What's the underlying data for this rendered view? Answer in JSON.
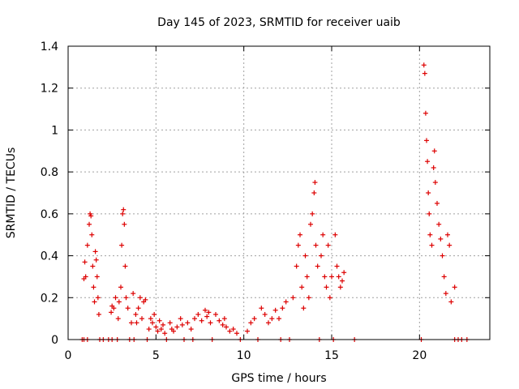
{
  "chart_data": {
    "type": "scatter",
    "title": "Day 145 of 2023, SRMTID for receiver uaib",
    "xlabel": "GPS time / hours",
    "ylabel": "SRMTID / TECUs",
    "xlim": [
      0,
      24
    ],
    "ylim": [
      0,
      1.4
    ],
    "xticks": [
      0,
      5,
      10,
      15,
      20
    ],
    "yticks": [
      0,
      0.2,
      0.4,
      0.6,
      0.8,
      1,
      1.2,
      1.4
    ],
    "xtick_labels": [
      "0",
      "5",
      "10",
      "15",
      "20"
    ],
    "ytick_labels": [
      "0",
      "0.2",
      "0.4",
      "0.6",
      "0.8",
      "1",
      "1.2",
      "1.4"
    ],
    "grid": true,
    "marker": "+",
    "series": [
      {
        "name": "SRMTID",
        "color": "#dd0000",
        "points": [
          [
            0.8,
            0.0
          ],
          [
            0.9,
            0.0
          ],
          [
            1.1,
            0.0
          ],
          [
            0.9,
            0.29
          ],
          [
            0.95,
            0.37
          ],
          [
            1.0,
            0.3
          ],
          [
            1.1,
            0.45
          ],
          [
            1.2,
            0.55
          ],
          [
            1.25,
            0.6
          ],
          [
            1.3,
            0.59
          ],
          [
            1.35,
            0.5
          ],
          [
            1.4,
            0.35
          ],
          [
            1.45,
            0.25
          ],
          [
            1.5,
            0.18
          ],
          [
            1.55,
            0.42
          ],
          [
            1.6,
            0.38
          ],
          [
            1.65,
            0.3
          ],
          [
            1.7,
            0.2
          ],
          [
            1.75,
            0.12
          ],
          [
            1.8,
            0.0
          ],
          [
            2.0,
            0.0
          ],
          [
            2.3,
            0.0
          ],
          [
            2.5,
            0.0
          ],
          [
            2.45,
            0.13
          ],
          [
            2.5,
            0.16
          ],
          [
            2.6,
            0.15
          ],
          [
            2.7,
            0.2
          ],
          [
            2.8,
            0.0
          ],
          [
            2.85,
            0.1
          ],
          [
            2.9,
            0.18
          ],
          [
            3.0,
            0.25
          ],
          [
            3.05,
            0.45
          ],
          [
            3.1,
            0.6
          ],
          [
            3.15,
            0.62
          ],
          [
            3.2,
            0.55
          ],
          [
            3.25,
            0.35
          ],
          [
            3.3,
            0.2
          ],
          [
            3.4,
            0.15
          ],
          [
            3.5,
            0.0
          ],
          [
            3.6,
            0.08
          ],
          [
            3.7,
            0.22
          ],
          [
            3.75,
            0.0
          ],
          [
            3.85,
            0.12
          ],
          [
            3.9,
            0.08
          ],
          [
            4.0,
            0.15
          ],
          [
            4.1,
            0.2
          ],
          [
            4.2,
            0.1
          ],
          [
            4.3,
            0.18
          ],
          [
            4.4,
            0.19
          ],
          [
            4.5,
            0.0
          ],
          [
            4.6,
            0.05
          ],
          [
            4.7,
            0.1
          ],
          [
            4.8,
            0.08
          ],
          [
            4.9,
            0.12
          ],
          [
            5.0,
            0.06
          ],
          [
            5.1,
            0.04
          ],
          [
            5.2,
            0.09
          ],
          [
            5.3,
            0.05
          ],
          [
            5.4,
            0.07
          ],
          [
            5.5,
            0.03
          ],
          [
            5.6,
            0.0
          ],
          [
            5.8,
            0.08
          ],
          [
            5.9,
            0.05
          ],
          [
            6.0,
            0.04
          ],
          [
            6.2,
            0.06
          ],
          [
            6.4,
            0.1
          ],
          [
            6.5,
            0.07
          ],
          [
            6.6,
            0.0
          ],
          [
            6.8,
            0.08
          ],
          [
            7.0,
            0.05
          ],
          [
            7.1,
            0.0
          ],
          [
            7.2,
            0.1
          ],
          [
            7.4,
            0.12
          ],
          [
            7.6,
            0.09
          ],
          [
            7.8,
            0.14
          ],
          [
            7.9,
            0.11
          ],
          [
            8.0,
            0.13
          ],
          [
            8.1,
            0.08
          ],
          [
            8.2,
            0.0
          ],
          [
            8.4,
            0.12
          ],
          [
            8.6,
            0.09
          ],
          [
            8.8,
            0.07
          ],
          [
            8.9,
            0.1
          ],
          [
            9.0,
            0.06
          ],
          [
            9.2,
            0.04
          ],
          [
            9.4,
            0.05
          ],
          [
            9.6,
            0.03
          ],
          [
            9.8,
            0.0
          ],
          [
            10.2,
            0.04
          ],
          [
            10.4,
            0.08
          ],
          [
            10.6,
            0.1
          ],
          [
            10.8,
            0.0
          ],
          [
            11.0,
            0.15
          ],
          [
            11.2,
            0.12
          ],
          [
            11.4,
            0.08
          ],
          [
            11.6,
            0.1
          ],
          [
            11.8,
            0.14
          ],
          [
            12.0,
            0.1
          ],
          [
            12.1,
            0.0
          ],
          [
            12.2,
            0.15
          ],
          [
            12.4,
            0.18
          ],
          [
            12.6,
            0.0
          ],
          [
            12.8,
            0.2
          ],
          [
            13.0,
            0.35
          ],
          [
            13.1,
            0.45
          ],
          [
            13.2,
            0.5
          ],
          [
            13.3,
            0.25
          ],
          [
            13.4,
            0.15
          ],
          [
            13.5,
            0.4
          ],
          [
            13.6,
            0.3
          ],
          [
            13.7,
            0.2
          ],
          [
            13.8,
            0.55
          ],
          [
            13.9,
            0.6
          ],
          [
            14.0,
            0.7
          ],
          [
            14.05,
            0.75
          ],
          [
            14.1,
            0.45
          ],
          [
            14.2,
            0.35
          ],
          [
            14.3,
            0.0
          ],
          [
            14.4,
            0.4
          ],
          [
            14.5,
            0.5
          ],
          [
            14.6,
            0.3
          ],
          [
            14.7,
            0.25
          ],
          [
            14.8,
            0.45
          ],
          [
            14.9,
            0.2
          ],
          [
            15.0,
            0.3
          ],
          [
            15.1,
            0.0
          ],
          [
            15.2,
            0.5
          ],
          [
            15.3,
            0.35
          ],
          [
            15.4,
            0.3
          ],
          [
            15.5,
            0.25
          ],
          [
            15.6,
            0.28
          ],
          [
            15.7,
            0.32
          ],
          [
            16.3,
            0.0
          ],
          [
            20.1,
            0.0
          ],
          [
            20.25,
            1.31
          ],
          [
            20.3,
            1.27
          ],
          [
            20.35,
            1.08
          ],
          [
            20.4,
            0.95
          ],
          [
            20.45,
            0.85
          ],
          [
            20.5,
            0.7
          ],
          [
            20.55,
            0.6
          ],
          [
            20.6,
            0.5
          ],
          [
            20.7,
            0.45
          ],
          [
            20.8,
            0.82
          ],
          [
            20.85,
            0.9
          ],
          [
            20.9,
            0.75
          ],
          [
            21.0,
            0.65
          ],
          [
            21.1,
            0.55
          ],
          [
            21.2,
            0.48
          ],
          [
            21.3,
            0.4
          ],
          [
            21.4,
            0.3
          ],
          [
            21.5,
            0.22
          ],
          [
            21.6,
            0.5
          ],
          [
            21.7,
            0.45
          ],
          [
            21.8,
            0.18
          ],
          [
            22.0,
            0.25
          ],
          [
            22.0,
            0.0
          ],
          [
            22.2,
            0.0
          ],
          [
            22.4,
            0.0
          ],
          [
            22.7,
            0.0
          ]
        ]
      }
    ]
  }
}
